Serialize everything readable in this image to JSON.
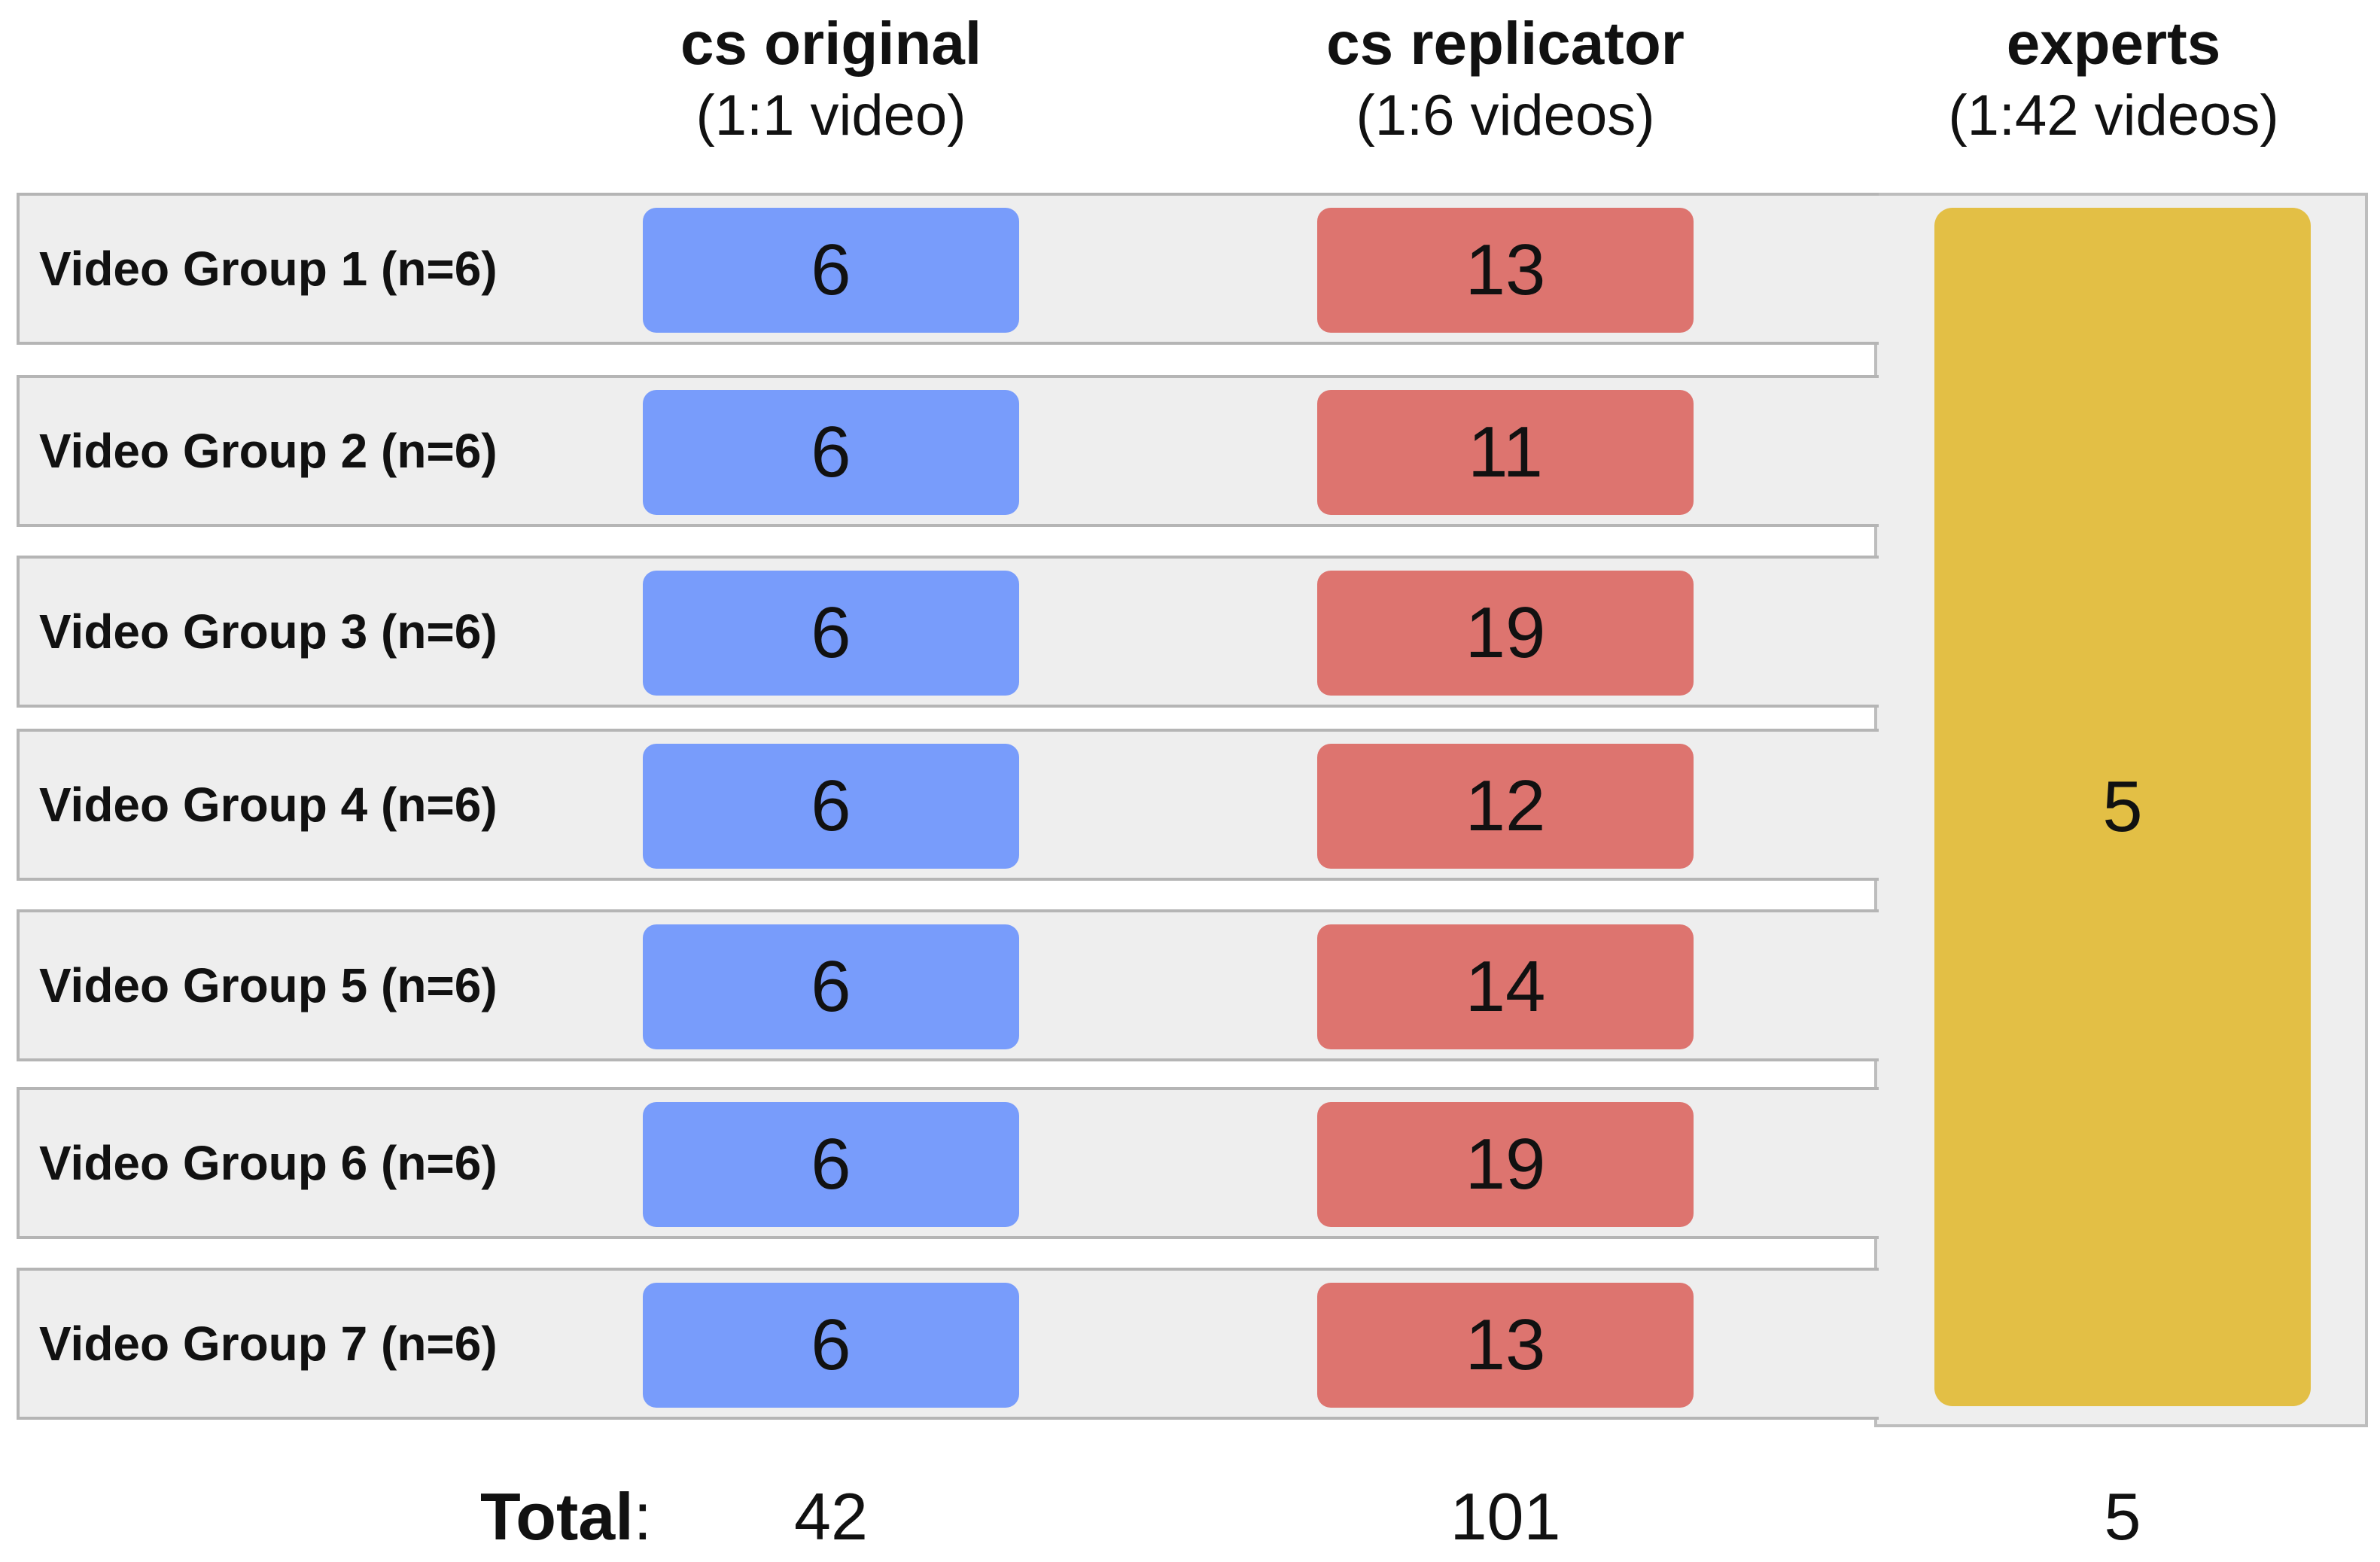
{
  "columns": [
    {
      "title": "cs original",
      "subtitle": "(1:1 video)"
    },
    {
      "title": "cs replicator",
      "subtitle": "(1:6 videos)"
    },
    {
      "title": "experts",
      "subtitle": "(1:42 videos)"
    }
  ],
  "rows": [
    {
      "label": "Video Group 1 (n=6)",
      "original": "6",
      "replicator": "13"
    },
    {
      "label": "Video Group 2 (n=6)",
      "original": "6",
      "replicator": "11"
    },
    {
      "label": "Video Group 3 (n=6)",
      "original": "6",
      "replicator": "19"
    },
    {
      "label": "Video Group 4 (n=6)",
      "original": "6",
      "replicator": "12"
    },
    {
      "label": "Video Group 5 (n=6)",
      "original": "6",
      "replicator": "14"
    },
    {
      "label": "Video Group 6 (n=6)",
      "original": "6",
      "replicator": "19"
    },
    {
      "label": "Video Group 7 (n=6)",
      "original": "6",
      "replicator": "13"
    }
  ],
  "experts_value": "5",
  "totals": {
    "label": "Total",
    "colon": ":",
    "original": "42",
    "replicator": "101",
    "experts": "5"
  },
  "colors": {
    "original": "#789cfb",
    "replicator": "#dd746f",
    "experts": "#e3bf45",
    "row_background": "#eeeeee"
  }
}
